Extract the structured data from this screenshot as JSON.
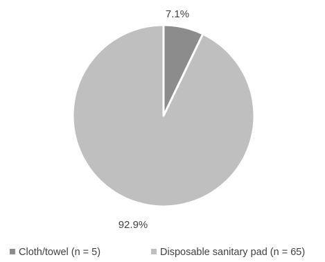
{
  "chart_data": {
    "type": "pie",
    "title": "",
    "slices": [
      {
        "label": "Cloth/towel (n = 5)",
        "value": 5,
        "percent_label": "7.1%",
        "color": "#8c8c8c"
      },
      {
        "label": "Disposable sanitary pad (n = 65)",
        "value": 65,
        "percent_label": "92.9%",
        "color": "#bfbfbf"
      }
    ],
    "start_angle_deg": 0,
    "direction": "clockwise",
    "slice_border_color": "#ffffff",
    "legend_position": "bottom"
  }
}
